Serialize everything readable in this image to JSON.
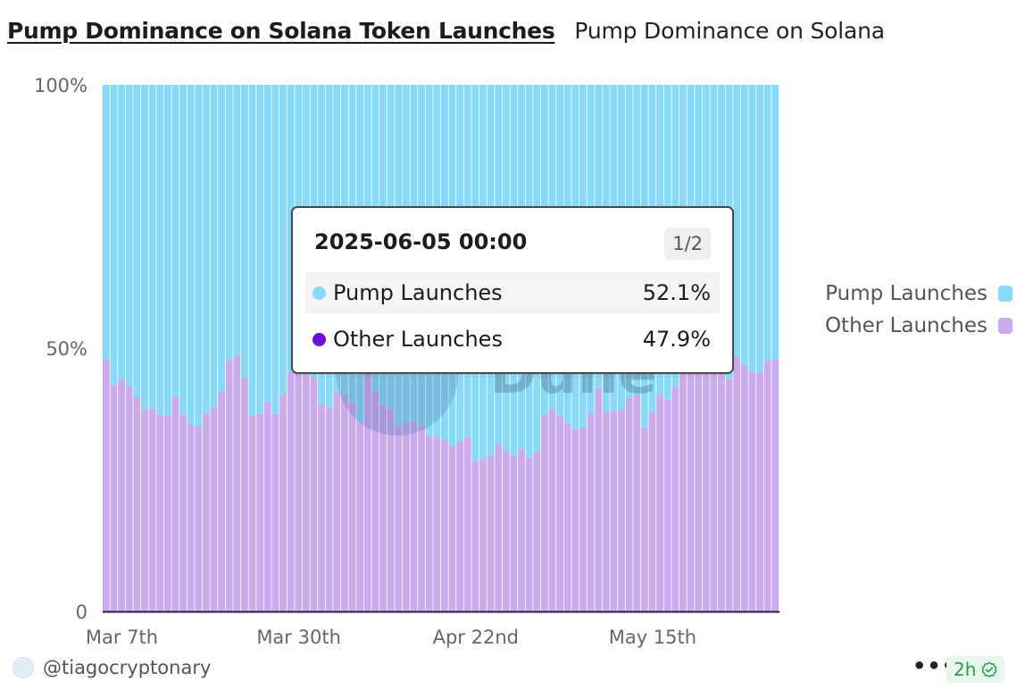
{
  "header": {
    "title": "Pump Dominance on Solana Token Launches",
    "subtitle": "Pump Dominance on Solana"
  },
  "legend": [
    {
      "label": "Pump Launches",
      "color": "#87dafa"
    },
    {
      "label": "Other Launches",
      "color": "#cbaaed"
    }
  ],
  "tooltip": {
    "title": "2025-06-05 00:00",
    "page": "1/2",
    "rows": [
      {
        "label": "Pump Launches",
        "value": "52.1%",
        "dot_color": "#87dafa"
      },
      {
        "label": "Other Launches",
        "value": "47.9%",
        "dot_color": "#6a0fd6"
      }
    ]
  },
  "footer": {
    "user": "@tiagocryptonary",
    "more": "•••",
    "age": "2h",
    "verified_icon": "check-badge-icon",
    "age_color": "#2a9a4e"
  },
  "chart_data": {
    "type": "bar",
    "stacked": true,
    "normalized": true,
    "x_start": "2025-03-05",
    "x_step_days": 1,
    "x_ticks": [
      "Mar 7th",
      "Mar 30th",
      "Apr 22nd",
      "May 15th"
    ],
    "y_ticks": [
      "0",
      "50%",
      "100%"
    ],
    "ylim": [
      0,
      100
    ],
    "grid": false,
    "legend_position": "right",
    "watermark": "Dune",
    "series": [
      {
        "name": "Other Launches",
        "color": "#cbaaed",
        "values": [
          47.7,
          43.0,
          44.2,
          42.8,
          40.6,
          38.3,
          38.6,
          37.3,
          37.3,
          40.7,
          37.4,
          35.5,
          35.0,
          37.6,
          38.9,
          41.7,
          47.7,
          48.6,
          44.4,
          37.3,
          37.5,
          39.8,
          37.5,
          41.3,
          45.4,
          48.6,
          46.0,
          44.4,
          39.4,
          38.7,
          41.6,
          41.1,
          39.7,
          36.1,
          45.3,
          41.9,
          39.2,
          38.4,
          35.2,
          36.0,
          36.0,
          35.3,
          33.4,
          33.2,
          32.6,
          31.4,
          32.2,
          33.1,
          28.6,
          29.0,
          29.7,
          31.8,
          30.5,
          29.6,
          30.9,
          29.2,
          30.3,
          37.3,
          38.4,
          37.1,
          35.7,
          34.6,
          35.0,
          37.5,
          42.4,
          37.9,
          38.1,
          38.3,
          40.5,
          41.1,
          34.8,
          37.8,
          41.2,
          40.2,
          42.6,
          45.2,
          46.4,
          46.1,
          45.5,
          47.6,
          46.7,
          44.1,
          48.3,
          46.8,
          45.4,
          45.4,
          47.6,
          47.9
        ]
      },
      {
        "name": "Pump Launches",
        "color": "#87dafa",
        "values": [
          52.3,
          57.0,
          55.8,
          57.2,
          59.4,
          61.7,
          61.4,
          62.7,
          62.7,
          59.3,
          62.6,
          64.5,
          65.0,
          62.4,
          61.1,
          58.3,
          52.3,
          51.4,
          55.6,
          62.7,
          62.5,
          60.2,
          62.5,
          58.7,
          54.6,
          51.4,
          54.0,
          55.6,
          60.6,
          61.3,
          58.4,
          58.9,
          60.3,
          63.9,
          54.7,
          58.1,
          60.8,
          61.6,
          64.8,
          64.0,
          64.0,
          64.7,
          66.6,
          66.8,
          67.4,
          68.6,
          67.8,
          66.9,
          71.4,
          71.0,
          70.3,
          68.2,
          69.5,
          70.4,
          69.1,
          70.8,
          69.7,
          62.7,
          61.6,
          62.9,
          64.3,
          65.4,
          65.0,
          62.5,
          57.6,
          62.1,
          61.9,
          61.7,
          59.5,
          58.9,
          65.2,
          62.2,
          58.8,
          59.8,
          57.4,
          54.8,
          53.6,
          53.9,
          54.5,
          52.4,
          53.3,
          55.9,
          51.7,
          53.2,
          54.6,
          54.6,
          52.4,
          52.1
        ]
      }
    ]
  }
}
